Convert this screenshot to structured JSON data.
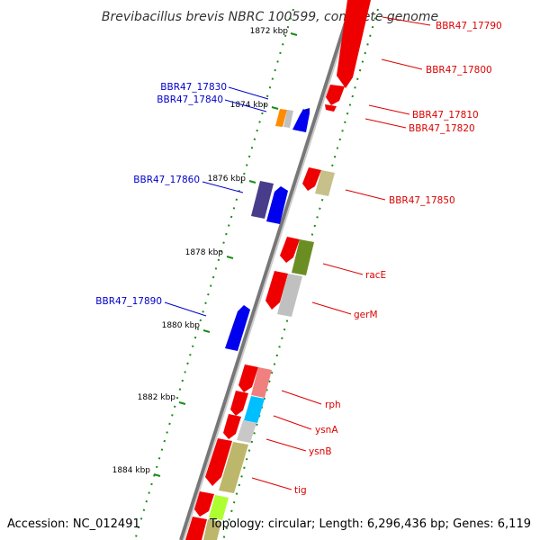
{
  "title": "Brevibacillus brevis NBRC 100599, complete genome",
  "footer": {
    "accession": "Accession: NC_012491",
    "summary": "Topology: circular; Length: 6,296,436 bp; Genes: 6,119"
  },
  "colors": {
    "forward_label": "#dd0000",
    "reverse_label": "#0000cc",
    "backbone": "#888888"
  },
  "scale_labels": [
    "1872 kbp",
    "1874 kbp",
    "1876 kbp",
    "1878 kbp",
    "1880 kbp",
    "1882 kbp",
    "1884 kbp"
  ],
  "gene_labels": {
    "forward": [
      "BBR47_17790",
      "BBR47_17800",
      "BBR47_17810",
      "BBR47_17820",
      "BBR47_17850",
      "racE",
      "gerM",
      "rph",
      "ysnA",
      "ysnB",
      "tig"
    ],
    "reverse": [
      "BBR47_17830",
      "BBR47_17840",
      "BBR47_17860",
      "BBR47_17890"
    ]
  }
}
